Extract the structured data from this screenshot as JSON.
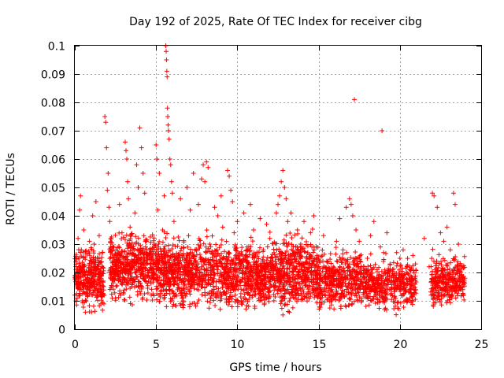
{
  "chart_data": {
    "type": "scatter",
    "title": "Day 192 of 2025, Rate Of TEC Index for receiver cibg",
    "xlabel": "GPS time / hours",
    "ylabel": "ROTI / TECUs",
    "xlim": [
      0,
      25
    ],
    "ylim": [
      0,
      0.1
    ],
    "x_ticks": [
      0,
      5,
      10,
      15,
      20,
      25
    ],
    "x_tick_labels": [
      "0",
      "5",
      "10",
      "15",
      "20",
      "25"
    ],
    "y_ticks": [
      0,
      0.01,
      0.02,
      0.03,
      0.04,
      0.05,
      0.06,
      0.07,
      0.08,
      0.09,
      0.1
    ],
    "y_tick_labels": [
      "0",
      "0.01",
      "0.02",
      "0.03",
      "0.04",
      "0.05",
      "0.06",
      "0.07",
      "0.08",
      "0.09",
      "0.1"
    ],
    "grid": true,
    "marker": "+",
    "series": [
      {
        "name": "ROTI",
        "color": "#ff0000",
        "points": [
          [
            0.0,
            0.012
          ],
          [
            0.05,
            0.018
          ],
          [
            0.1,
            0.025
          ],
          [
            0.15,
            0.015
          ],
          [
            0.2,
            0.032
          ],
          [
            0.25,
            0.02
          ],
          [
            0.3,
            0.042
          ],
          [
            0.35,
            0.047
          ],
          [
            0.4,
            0.028
          ],
          [
            0.45,
            0.01
          ],
          [
            0.5,
            0.022
          ],
          [
            0.55,
            0.035
          ],
          [
            0.6,
            0.016
          ],
          [
            0.65,
            0.006
          ],
          [
            0.7,
            0.013
          ],
          [
            0.8,
            0.019
          ],
          [
            0.9,
            0.031
          ],
          [
            1.0,
            0.024
          ],
          [
            1.1,
            0.04
          ],
          [
            1.2,
            0.017
          ],
          [
            1.3,
            0.045
          ],
          [
            1.4,
            0.021
          ],
          [
            1.5,
            0.033
          ],
          [
            1.6,
            0.014
          ],
          [
            1.7,
            0.027
          ],
          [
            1.8,
            0.012
          ],
          [
            1.85,
            0.075
          ],
          [
            1.9,
            0.073
          ],
          [
            1.95,
            0.064
          ],
          [
            2.0,
            0.049
          ],
          [
            2.05,
            0.055
          ],
          [
            2.1,
            0.043
          ],
          [
            2.15,
            0.038
          ],
          [
            2.2,
            0.029
          ],
          [
            2.3,
            0.018
          ],
          [
            2.5,
            0.011
          ],
          [
            2.6,
            0.026
          ],
          [
            2.75,
            0.044
          ],
          [
            2.9,
            0.034
          ],
          [
            3.0,
            0.023
          ],
          [
            3.1,
            0.066
          ],
          [
            3.15,
            0.063
          ],
          [
            3.2,
            0.06
          ],
          [
            3.25,
            0.052
          ],
          [
            3.3,
            0.046
          ],
          [
            3.4,
            0.036
          ],
          [
            3.5,
            0.015
          ],
          [
            3.6,
            0.024
          ],
          [
            3.7,
            0.041
          ],
          [
            3.8,
            0.058
          ],
          [
            3.9,
            0.05
          ],
          [
            4.0,
            0.071
          ],
          [
            4.1,
            0.064
          ],
          [
            4.2,
            0.055
          ],
          [
            4.3,
            0.048
          ],
          [
            4.4,
            0.031
          ],
          [
            4.5,
            0.019
          ],
          [
            4.6,
            0.028
          ],
          [
            4.7,
            0.012
          ],
          [
            5.0,
            0.065
          ],
          [
            5.05,
            0.06
          ],
          [
            5.1,
            0.042
          ],
          [
            5.15,
            0.03
          ],
          [
            5.2,
            0.055
          ],
          [
            5.3,
            0.021
          ],
          [
            5.4,
            0.035
          ],
          [
            5.5,
            0.047
          ],
          [
            5.6,
            0.1
          ],
          [
            5.62,
            0.098
          ],
          [
            5.64,
            0.095
          ],
          [
            5.66,
            0.091
          ],
          [
            5.68,
            0.089
          ],
          [
            5.7,
            0.078
          ],
          [
            5.72,
            0.075
          ],
          [
            5.74,
            0.072
          ],
          [
            5.76,
            0.07
          ],
          [
            5.8,
            0.067
          ],
          [
            5.85,
            0.06
          ],
          [
            5.9,
            0.058
          ],
          [
            5.95,
            0.052
          ],
          [
            6.0,
            0.048
          ],
          [
            6.1,
            0.038
          ],
          [
            6.3,
            0.025
          ],
          [
            6.5,
            0.046
          ],
          [
            6.7,
            0.02
          ],
          [
            6.9,
            0.05
          ],
          [
            7.0,
            0.033
          ],
          [
            7.1,
            0.042
          ],
          [
            7.2,
            0.018
          ],
          [
            7.3,
            0.055
          ],
          [
            7.4,
            0.028
          ],
          [
            7.6,
            0.044
          ],
          [
            7.8,
            0.053
          ],
          [
            7.9,
            0.058
          ],
          [
            8.0,
            0.052
          ],
          [
            8.1,
            0.059
          ],
          [
            8.2,
            0.057
          ],
          [
            8.3,
            0.03
          ],
          [
            8.5,
            0.024
          ],
          [
            8.6,
            0.043
          ],
          [
            8.8,
            0.04
          ],
          [
            9.0,
            0.047
          ],
          [
            9.1,
            0.036
          ],
          [
            9.2,
            0.021
          ],
          [
            9.4,
            0.056
          ],
          [
            9.5,
            0.054
          ],
          [
            9.6,
            0.049
          ],
          [
            9.7,
            0.045
          ],
          [
            9.8,
            0.034
          ],
          [
            9.9,
            0.026
          ],
          [
            10.0,
            0.038
          ],
          [
            10.2,
            0.017
          ],
          [
            10.4,
            0.041
          ],
          [
            10.6,
            0.029
          ],
          [
            10.8,
            0.044
          ],
          [
            11.0,
            0.035
          ],
          [
            11.2,
            0.024
          ],
          [
            11.4,
            0.039
          ],
          [
            11.6,
            0.028
          ],
          [
            11.8,
            0.037
          ],
          [
            12.0,
            0.032
          ],
          [
            12.2,
            0.022
          ],
          [
            12.4,
            0.041
          ],
          [
            12.5,
            0.044
          ],
          [
            12.6,
            0.047
          ],
          [
            12.7,
            0.052
          ],
          [
            12.8,
            0.056
          ],
          [
            12.9,
            0.05
          ],
          [
            13.0,
            0.046
          ],
          [
            13.1,
            0.038
          ],
          [
            13.2,
            0.006
          ],
          [
            13.3,
            0.041
          ],
          [
            13.5,
            0.027
          ],
          [
            13.7,
            0.035
          ],
          [
            13.9,
            0.03
          ],
          [
            14.1,
            0.038
          ],
          [
            14.3,
            0.021
          ],
          [
            14.5,
            0.034
          ],
          [
            14.7,
            0.04
          ],
          [
            14.9,
            0.026
          ],
          [
            15.1,
            0.014
          ],
          [
            15.3,
            0.033
          ],
          [
            15.5,
            0.024
          ],
          [
            15.7,
            0.012
          ],
          [
            15.9,
            0.022
          ],
          [
            16.1,
            0.031
          ],
          [
            16.3,
            0.039
          ],
          [
            16.5,
            0.028
          ],
          [
            16.7,
            0.043
          ],
          [
            16.9,
            0.046
          ],
          [
            17.0,
            0.044
          ],
          [
            17.1,
            0.04
          ],
          [
            17.2,
            0.081
          ],
          [
            17.3,
            0.035
          ],
          [
            17.5,
            0.031
          ],
          [
            18.0,
            0.025
          ],
          [
            18.2,
            0.033
          ],
          [
            18.4,
            0.038
          ],
          [
            18.6,
            0.021
          ],
          [
            18.8,
            0.029
          ],
          [
            18.9,
            0.07
          ],
          [
            19.0,
            0.027
          ],
          [
            19.2,
            0.034
          ],
          [
            19.4,
            0.023
          ],
          [
            19.6,
            0.019
          ],
          [
            19.8,
            0.027
          ],
          [
            20.0,
            0.025
          ],
          [
            20.2,
            0.028
          ],
          [
            20.4,
            0.02
          ],
          [
            20.6,
            0.014
          ],
          [
            20.8,
            0.026
          ],
          [
            21.5,
            0.032
          ],
          [
            21.8,
            0.022
          ],
          [
            22.0,
            0.048
          ],
          [
            22.1,
            0.047
          ],
          [
            22.3,
            0.043
          ],
          [
            22.5,
            0.034
          ],
          [
            22.7,
            0.031
          ],
          [
            22.9,
            0.036
          ],
          [
            23.1,
            0.028
          ],
          [
            23.3,
            0.048
          ],
          [
            23.4,
            0.044
          ],
          [
            23.6,
            0.03
          ],
          [
            23.8,
            0.022
          ],
          [
            24.0,
            0.018
          ]
        ],
        "clusters": [
          {
            "t0": 0.0,
            "t1": 1.8,
            "low": 0.006,
            "mid": 0.018,
            "high": 0.036,
            "count": 340
          },
          {
            "t0": 2.15,
            "t1": 4.9,
            "low": 0.008,
            "mid": 0.022,
            "high": 0.04,
            "count": 520
          },
          {
            "t0": 4.95,
            "t1": 9.3,
            "low": 0.007,
            "mid": 0.02,
            "high": 0.041,
            "count": 760
          },
          {
            "t0": 9.3,
            "t1": 12.3,
            "low": 0.006,
            "mid": 0.019,
            "high": 0.038,
            "count": 560
          },
          {
            "t0": 12.3,
            "t1": 15.0,
            "low": 0.005,
            "mid": 0.02,
            "high": 0.04,
            "count": 500
          },
          {
            "t0": 15.0,
            "t1": 17.8,
            "low": 0.006,
            "mid": 0.017,
            "high": 0.033,
            "count": 420
          },
          {
            "t0": 17.8,
            "t1": 21.0,
            "low": 0.005,
            "mid": 0.016,
            "high": 0.03,
            "count": 430
          },
          {
            "t0": 21.9,
            "t1": 24.0,
            "low": 0.008,
            "mid": 0.017,
            "high": 0.032,
            "count": 320
          }
        ]
      }
    ]
  }
}
